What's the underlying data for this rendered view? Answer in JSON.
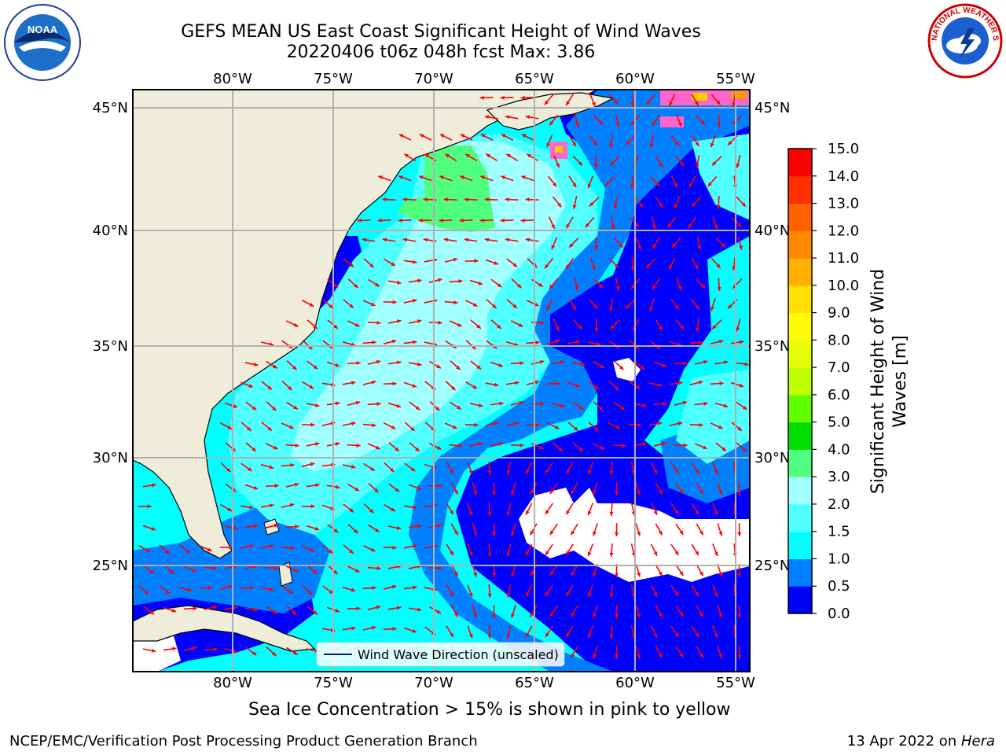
{
  "header": {
    "title_line1": "GEFS MEAN US East Coast Significant Height of Wind Waves",
    "title_line2": "20220406 t06z 048h fcst   Max: 3.86"
  },
  "map": {
    "lon_ticks": [
      "80°W",
      "75°W",
      "70°W",
      "65°W",
      "60°W",
      "55°W"
    ],
    "lat_ticks": [
      "45°N",
      "40°N",
      "35°N",
      "30°N",
      "25°N"
    ],
    "legend_label": "Wind Wave Direction (unscaled)",
    "arrow_color": "#ff0000",
    "land_color": "#efedda"
  },
  "colorbar": {
    "label_line1": "Significant Height of Wind",
    "label_line2": "Waves [m]",
    "ticks": [
      "0.0",
      "0.5",
      "1.0",
      "1.5",
      "2.0",
      "3.0",
      "4.0",
      "5.0",
      "6.0",
      "7.0",
      "8.0",
      "9.0",
      "10.0",
      "11.0",
      "12.0",
      "13.0",
      "14.0",
      "15.0"
    ],
    "colors": [
      "#0000ff",
      "#0080ff",
      "#00ffff",
      "#50ffff",
      "#a0ffff",
      "#50ff80",
      "#00e000",
      "#60ff00",
      "#c0ff00",
      "#e8ff00",
      "#ffff00",
      "#ffe000",
      "#ffb000",
      "#ff8800",
      "#ff6000",
      "#ff3000",
      "#ff0000"
    ]
  },
  "ice_note": "Sea Ice Concentration > 15% is shown in pink to yellow",
  "footer": {
    "left": "NCEP/EMC/Verification Post Processing Product Generation Branch",
    "right_date": "13 Apr 2022 on ",
    "right_host": "Hera"
  },
  "logos": {
    "noaa_text": "NOAA",
    "nws_text": "NATIONAL WEATHER SERVICE"
  }
}
